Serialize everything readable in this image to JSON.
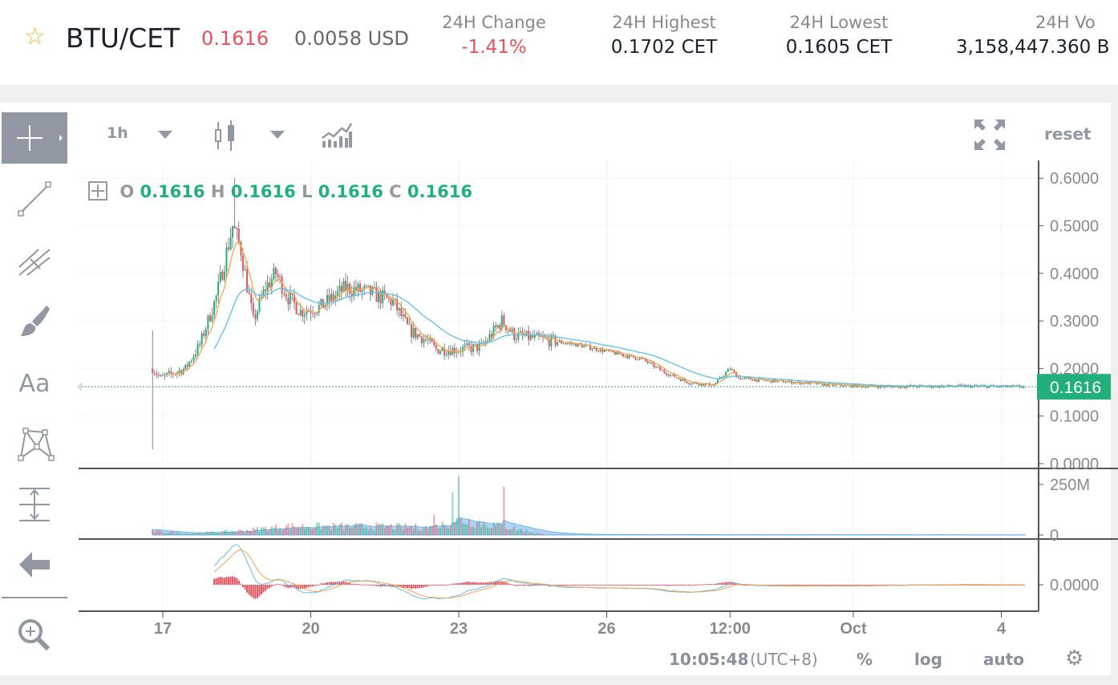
{
  "header": {
    "pair": "BTU/CET",
    "last_price": "0.1616",
    "usd_price": "0.0058 USD",
    "stats": [
      {
        "label": "24H Change",
        "value": "-1.41%",
        "color": "#e8505b"
      },
      {
        "label": "24H Highest",
        "value": "0.1702 CET"
      },
      {
        "label": "24H Lowest",
        "value": "0.1605 CET"
      },
      {
        "label": "24H Vo",
        "value": "3,158,447.360 B"
      }
    ]
  },
  "toolbar": {
    "interval": "1h",
    "reset": "reset"
  },
  "left_tools": {
    "text_tool": "Aa"
  },
  "legend": {
    "o_label": "O",
    "o": "0.1616",
    "h_label": "H",
    "h": "0.1616",
    "l_label": "L",
    "l": "0.1616",
    "c_label": "C",
    "c": "0.1616"
  },
  "colors": {
    "up": "#22b07a",
    "down": "#e8505b",
    "ma_fast": "#f5a34e",
    "ma_slow": "#5bc0eb",
    "accent_gray": "#9197a3"
  },
  "bottom": {
    "time": "10:05:48",
    "tz": "(UTC+8)",
    "percent": "%",
    "log": "log",
    "auto": "auto"
  },
  "chart_data": {
    "type": "candlestick",
    "interval": "1h",
    "price_axis": {
      "ticks": [
        "0.6000",
        "0.5000",
        "0.4000",
        "0.3000",
        "0.2000",
        "0.1000",
        "0.0000"
      ],
      "range": [
        0,
        0.6
      ],
      "current": "0.1616"
    },
    "volume_axis": {
      "ticks": [
        "250M",
        "0"
      ]
    },
    "macd_axis": {
      "ticks": [
        "0.0000"
      ]
    },
    "time_axis": {
      "ticks": [
        {
          "label": "17",
          "t": "09-17 00:00"
        },
        {
          "label": "20",
          "t": "09-20 00:00"
        },
        {
          "label": "23",
          "t": "09-23 00:00"
        },
        {
          "label": "26",
          "t": "09-26 00:00"
        },
        {
          "label": "12:00",
          "t": "09-28 12:00"
        },
        {
          "label": "Oct",
          "t": "10-01 00:00"
        },
        {
          "label": "4",
          "t": "10-04 00:00"
        }
      ]
    },
    "close_path": [
      [
        "09-16 19:00",
        0.2
      ],
      [
        "09-16 23:00",
        0.18
      ],
      [
        "09-17 11:00",
        0.2
      ],
      [
        "09-17 18:00",
        0.25
      ],
      [
        "09-18 02:00",
        0.35
      ],
      [
        "09-18 10:00",
        0.5
      ],
      [
        "09-18 14:00",
        0.45
      ],
      [
        "09-18 20:00",
        0.3
      ],
      [
        "09-19 02:00",
        0.37
      ],
      [
        "09-19 07:00",
        0.4
      ],
      [
        "09-19 13:00",
        0.35
      ],
      [
        "09-19 19:00",
        0.32
      ],
      [
        "09-20 05:00",
        0.33
      ],
      [
        "09-20 17:00",
        0.37
      ],
      [
        "09-21 04:00",
        0.36
      ],
      [
        "09-21 16:00",
        0.34
      ],
      [
        "09-22 00:00",
        0.28
      ],
      [
        "09-22 08:00",
        0.26
      ],
      [
        "09-22 13:00",
        0.24
      ],
      [
        "09-22 23:00",
        0.24
      ],
      [
        "09-23 11:00",
        0.245
      ],
      [
        "09-23 21:00",
        0.3
      ],
      [
        "09-24 03:00",
        0.27
      ],
      [
        "09-24 18:00",
        0.26
      ],
      [
        "09-25 10:00",
        0.25
      ],
      [
        "09-26 01:00",
        0.235
      ],
      [
        "09-26 17:00",
        0.22
      ],
      [
        "09-27 05:00",
        0.19
      ],
      [
        "09-27 16:00",
        0.17
      ],
      [
        "09-28 04:00",
        0.165
      ],
      [
        "09-28 12:00",
        0.2
      ],
      [
        "09-28 16:00",
        0.18
      ],
      [
        "09-29 04:00",
        0.175
      ],
      [
        "09-29 23:00",
        0.17
      ],
      [
        "09-30 15:00",
        0.165
      ],
      [
        "10-01 14:00",
        0.162
      ],
      [
        "10-03 05:00",
        0.163
      ],
      [
        "10-04 12:00",
        0.1616
      ]
    ],
    "extremes": {
      "high": 0.6,
      "low": 0.03
    },
    "volume_level_millions": [
      [
        "09-16 19:00",
        20
      ],
      [
        "09-17 12:00",
        8
      ],
      [
        "09-18 12:00",
        20
      ],
      [
        "09-19 12:00",
        45
      ],
      [
        "09-21 00:00",
        45
      ],
      [
        "09-22 12:00",
        40
      ],
      [
        "09-23 00:00",
        80
      ],
      [
        "09-24 00:00",
        40
      ],
      [
        "09-24 18:00",
        2
      ],
      [
        "10-04 12:00",
        1
      ]
    ],
    "volume_spikes_millions": [
      [
        "09-22 12:00",
        100
      ],
      [
        "09-23 00:00",
        290
      ],
      [
        "09-22 21:00",
        210
      ],
      [
        "09-23 22:00",
        240
      ],
      [
        "09-21 20:00",
        40
      ]
    ]
  }
}
